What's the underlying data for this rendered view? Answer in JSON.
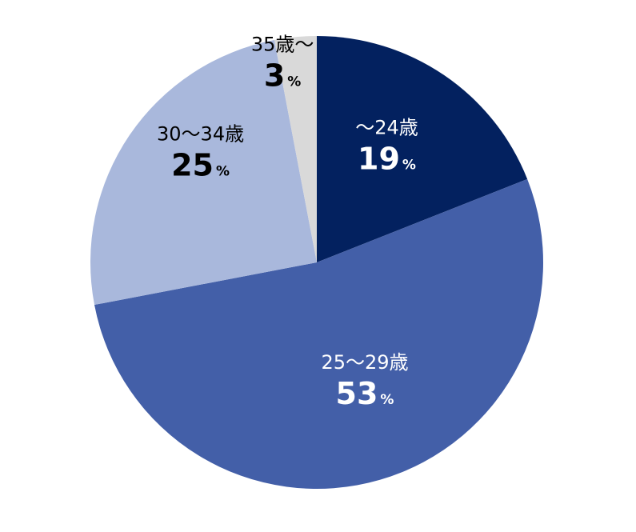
{
  "chart_data": {
    "type": "pie",
    "title": "",
    "unit": "%",
    "start_angle_deg": 0,
    "direction": "clockwise",
    "slices": [
      {
        "label": "～24歳",
        "value": 19,
        "display": "19",
        "color": "#03215f",
        "text_color": "#ffffff"
      },
      {
        "label": "25～29歳",
        "value": 53,
        "display": "53",
        "color": "#435fa8",
        "text_color": "#ffffff"
      },
      {
        "label": "30～34歳",
        "value": 25,
        "display": "25",
        "color": "#a9b8dc",
        "text_color": "#000000"
      },
      {
        "label": "35歳～",
        "value": 3,
        "display": "3",
        "color": "#d9d9d9",
        "text_color": "#000000"
      }
    ]
  }
}
